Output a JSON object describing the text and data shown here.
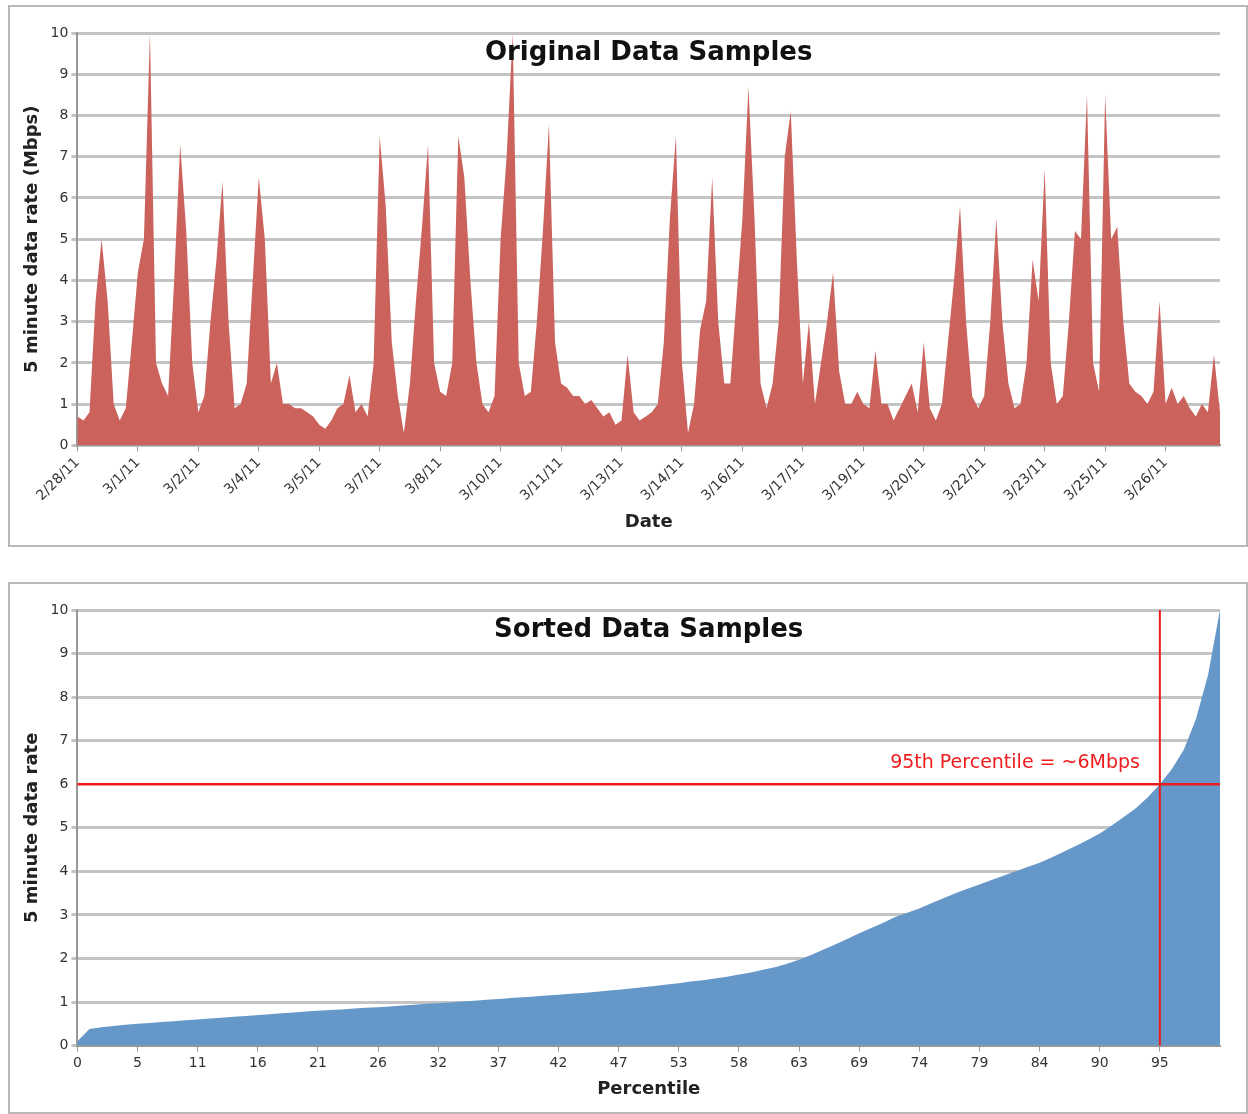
{
  "chart_data": [
    {
      "type": "area",
      "title": "Original Data Samples",
      "xlabel": "Date",
      "ylabel": "5 minute data rate (Mbps)",
      "grid": "y",
      "legend": false,
      "marker": "none",
      "ylim": [
        0,
        10
      ],
      "yticks": [
        0,
        1,
        2,
        3,
        4,
        5,
        6,
        7,
        8,
        9,
        10
      ],
      "categories": [
        "2/28/11",
        null,
        null,
        null,
        null,
        null,
        null,
        null,
        null,
        null,
        "3/1/11",
        null,
        null,
        null,
        null,
        null,
        null,
        null,
        null,
        null,
        "3/2/11",
        null,
        null,
        null,
        null,
        null,
        null,
        null,
        null,
        null,
        "3/4/11",
        null,
        null,
        null,
        null,
        null,
        null,
        null,
        null,
        null,
        "3/5/11",
        null,
        null,
        null,
        null,
        null,
        null,
        null,
        null,
        null,
        "3/7/11",
        null,
        null,
        null,
        null,
        null,
        null,
        null,
        null,
        null,
        "3/8/11",
        null,
        null,
        null,
        null,
        null,
        null,
        null,
        null,
        null,
        "3/10/11",
        null,
        null,
        null,
        null,
        null,
        null,
        null,
        null,
        null,
        "3/11/11",
        null,
        null,
        null,
        null,
        null,
        null,
        null,
        null,
        null,
        "3/13/11",
        null,
        null,
        null,
        null,
        null,
        null,
        null,
        null,
        null,
        "3/14/11",
        null,
        null,
        null,
        null,
        null,
        null,
        null,
        null,
        null,
        "3/16/11",
        null,
        null,
        null,
        null,
        null,
        null,
        null,
        null,
        null,
        "3/17/11",
        null,
        null,
        null,
        null,
        null,
        null,
        null,
        null,
        null,
        "3/19/11",
        null,
        null,
        null,
        null,
        null,
        null,
        null,
        null,
        null,
        "3/20/11",
        null,
        null,
        null,
        null,
        null,
        null,
        null,
        null,
        null,
        "3/22/11",
        null,
        null,
        null,
        null,
        null,
        null,
        null,
        null,
        null,
        "3/23/11",
        null,
        null,
        null,
        null,
        null,
        null,
        null,
        null,
        null,
        "3/25/11",
        null,
        null,
        null,
        null,
        null,
        null,
        null,
        null,
        null,
        "3/26/11",
        null,
        null,
        null,
        null,
        null,
        null,
        null,
        null,
        null
      ],
      "series": [
        {
          "color": "#cc625c",
          "values": [
            0.7,
            0.6,
            0.8,
            3.5,
            5,
            3.5,
            1,
            0.6,
            0.9,
            2.5,
            4.2,
            5,
            10,
            2,
            1.5,
            1.2,
            4,
            7.3,
            5.2,
            2,
            0.8,
            1.2,
            3,
            4.5,
            6.4,
            3,
            0.9,
            1,
            1.5,
            4,
            6.5,
            5,
            1.5,
            2,
            1,
            1,
            0.9,
            0.9,
            0.8,
            0.7,
            0.5,
            0.4,
            0.6,
            0.9,
            1,
            1.7,
            0.8,
            1,
            0.7,
            2,
            7.5,
            5.8,
            2.5,
            1.2,
            0.3,
            1.5,
            3.5,
            5.3,
            7.3,
            2,
            1.3,
            1.2,
            2,
            7.5,
            6.5,
            4,
            2,
            1,
            0.8,
            1.2,
            5,
            7,
            10,
            2,
            1.2,
            1.3,
            3,
            5.2,
            7.8,
            2.5,
            1.5,
            1.4,
            1.2,
            1.2,
            1,
            1.1,
            0.9,
            0.7,
            0.8,
            0.5,
            0.6,
            2.2,
            0.8,
            0.6,
            0.7,
            0.8,
            1,
            2.5,
            5.5,
            7.5,
            2,
            0.3,
            1,
            2.8,
            3.5,
            6.5,
            3,
            1.5,
            1.5,
            3.5,
            5.5,
            8.7,
            5.5,
            1.5,
            0.9,
            1.5,
            3,
            7,
            8.1,
            4.5,
            1.5,
            3,
            1,
            2,
            3,
            4.2,
            1.8,
            1,
            1,
            1.3,
            1,
            0.9,
            2.3,
            1,
            1,
            0.6,
            0.9,
            1.2,
            1.5,
            0.8,
            2.5,
            0.9,
            0.6,
            1,
            2.5,
            4,
            5.8,
            3,
            1.2,
            0.9,
            1.2,
            3,
            5.5,
            3,
            1.5,
            0.9,
            1,
            2,
            4.5,
            3.5,
            6.7,
            2,
            1,
            1.2,
            3,
            5.2,
            5,
            8.5,
            2,
            1.3,
            8.5,
            5,
            5.3,
            3,
            1.5,
            1.3,
            1.2,
            1,
            1.3,
            3.5,
            1,
            1.4,
            1,
            1.2,
            0.9,
            0.7,
            1,
            0.8,
            2.2,
            0.8
          ]
        }
      ]
    },
    {
      "type": "area",
      "title": "Sorted Data Samples",
      "xlabel": "Percentile",
      "ylabel": "5 minute data rate",
      "grid": "y",
      "legend": false,
      "marker": "none",
      "ylim": [
        0,
        10
      ],
      "yticks": [
        0,
        1,
        2,
        3,
        4,
        5,
        6,
        7,
        8,
        9,
        10
      ],
      "categories": [
        "0",
        null,
        null,
        null,
        null,
        "5",
        null,
        null,
        null,
        null,
        "11",
        null,
        null,
        null,
        null,
        "16",
        null,
        null,
        null,
        null,
        "21",
        null,
        null,
        null,
        null,
        "26",
        null,
        null,
        null,
        null,
        "32",
        null,
        null,
        null,
        null,
        "37",
        null,
        null,
        null,
        null,
        "42",
        null,
        null,
        null,
        null,
        "47",
        null,
        null,
        null,
        null,
        "53",
        null,
        null,
        null,
        null,
        "58",
        null,
        null,
        null,
        null,
        "63",
        null,
        null,
        null,
        null,
        "69",
        null,
        null,
        null,
        null,
        "74",
        null,
        null,
        null,
        null,
        "79",
        null,
        null,
        null,
        null,
        "84",
        null,
        null,
        null,
        null,
        "90",
        null,
        null,
        null,
        null,
        "95",
        null,
        null,
        null,
        null,
        null
      ],
      "series": [
        {
          "color": "#6597c9",
          "values": [
            0.1,
            0.38,
            0.42,
            0.45,
            0.48,
            0.5,
            0.52,
            0.54,
            0.56,
            0.58,
            0.6,
            0.62,
            0.64,
            0.66,
            0.68,
            0.7,
            0.72,
            0.74,
            0.76,
            0.78,
            0.8,
            0.82,
            0.83,
            0.85,
            0.87,
            0.88,
            0.9,
            0.92,
            0.94,
            0.96,
            0.97,
            0.99,
            1.01,
            1.03,
            1.05,
            1.07,
            1.09,
            1.11,
            1.13,
            1.15,
            1.17,
            1.19,
            1.21,
            1.23,
            1.26,
            1.28,
            1.31,
            1.34,
            1.37,
            1.4,
            1.43,
            1.47,
            1.5,
            1.54,
            1.58,
            1.63,
            1.68,
            1.74,
            1.8,
            1.88,
            1.97,
            2.08,
            2.2,
            2.32,
            2.45,
            2.58,
            2.7,
            2.82,
            2.95,
            3.05,
            3.15,
            3.27,
            3.38,
            3.5,
            3.6,
            3.7,
            3.8,
            3.9,
            4.0,
            4.1,
            4.2,
            4.32,
            4.45,
            4.58,
            4.72,
            4.87,
            5.05,
            5.25,
            5.45,
            5.7,
            6.0,
            6.35,
            6.8,
            7.5,
            8.5,
            10
          ]
        }
      ],
      "ref_lines": [
        {
          "axis": "y",
          "value": 6,
          "label": "95th Percentile = ~6Mbps",
          "color": "#ee1c1c"
        },
        {
          "axis": "x",
          "value": "95",
          "color": "#ee1c1c"
        }
      ]
    }
  ]
}
